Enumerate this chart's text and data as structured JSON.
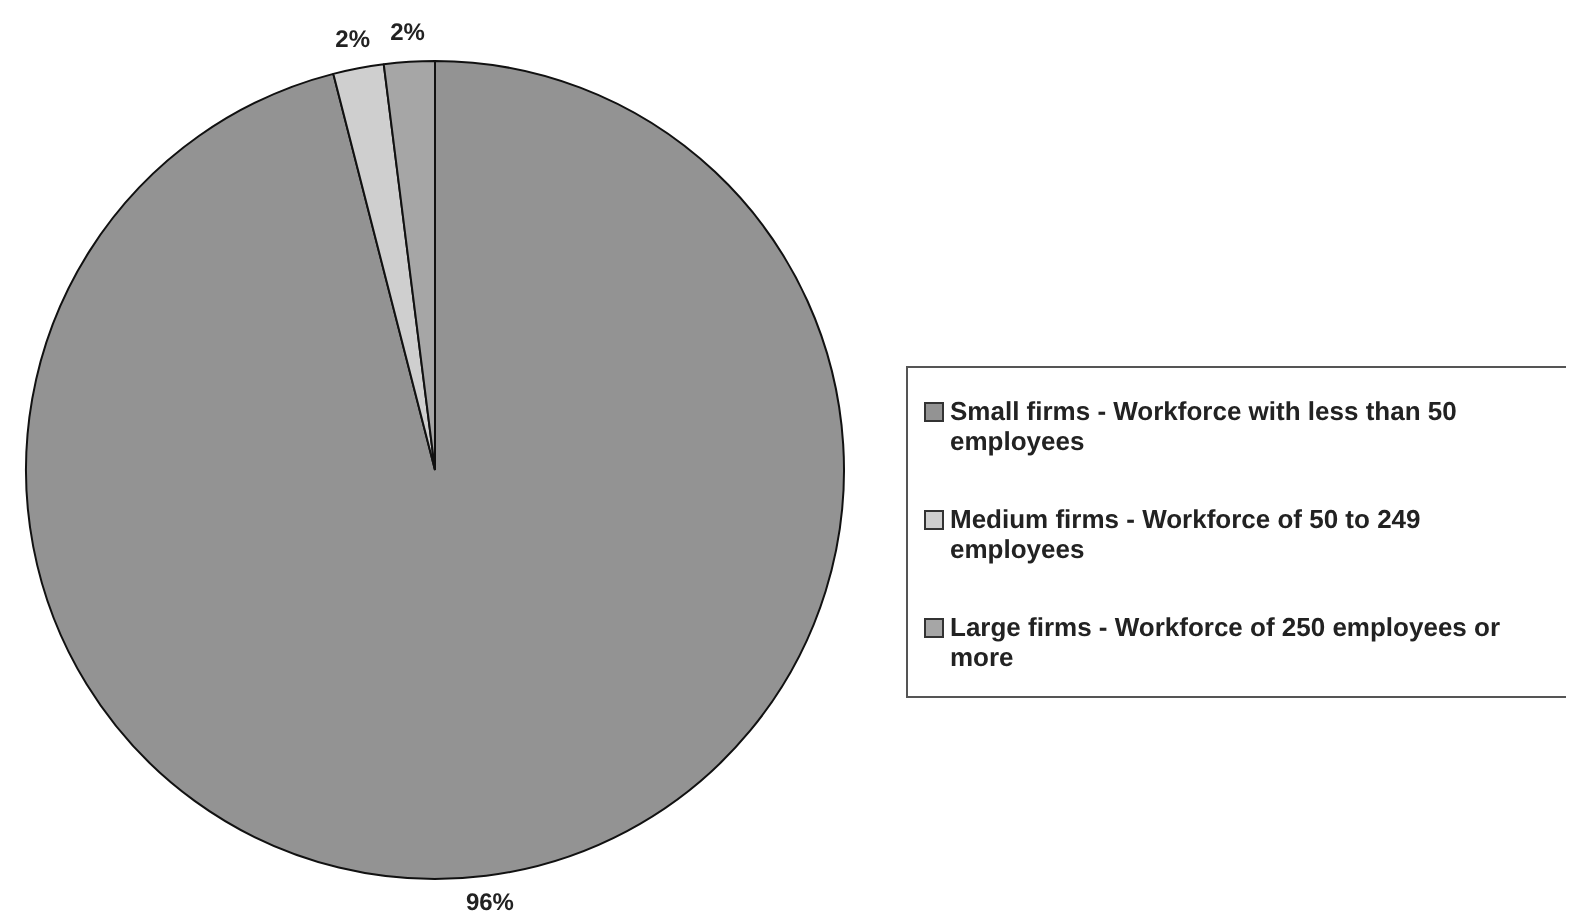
{
  "chart_data": {
    "type": "pie",
    "categories": [
      "Small firms - Workforce with less than 50 employees",
      "Medium firms - Workforce of 50 to 249 employees",
      "Large firms - Workforce of 250 employees or more"
    ],
    "values": [
      96,
      2,
      2
    ],
    "colors": [
      "#939393",
      "#cfcfcf",
      "#a6a6a6"
    ],
    "value_labels": [
      "96%",
      "2%",
      "2%"
    ],
    "legend": "right"
  }
}
